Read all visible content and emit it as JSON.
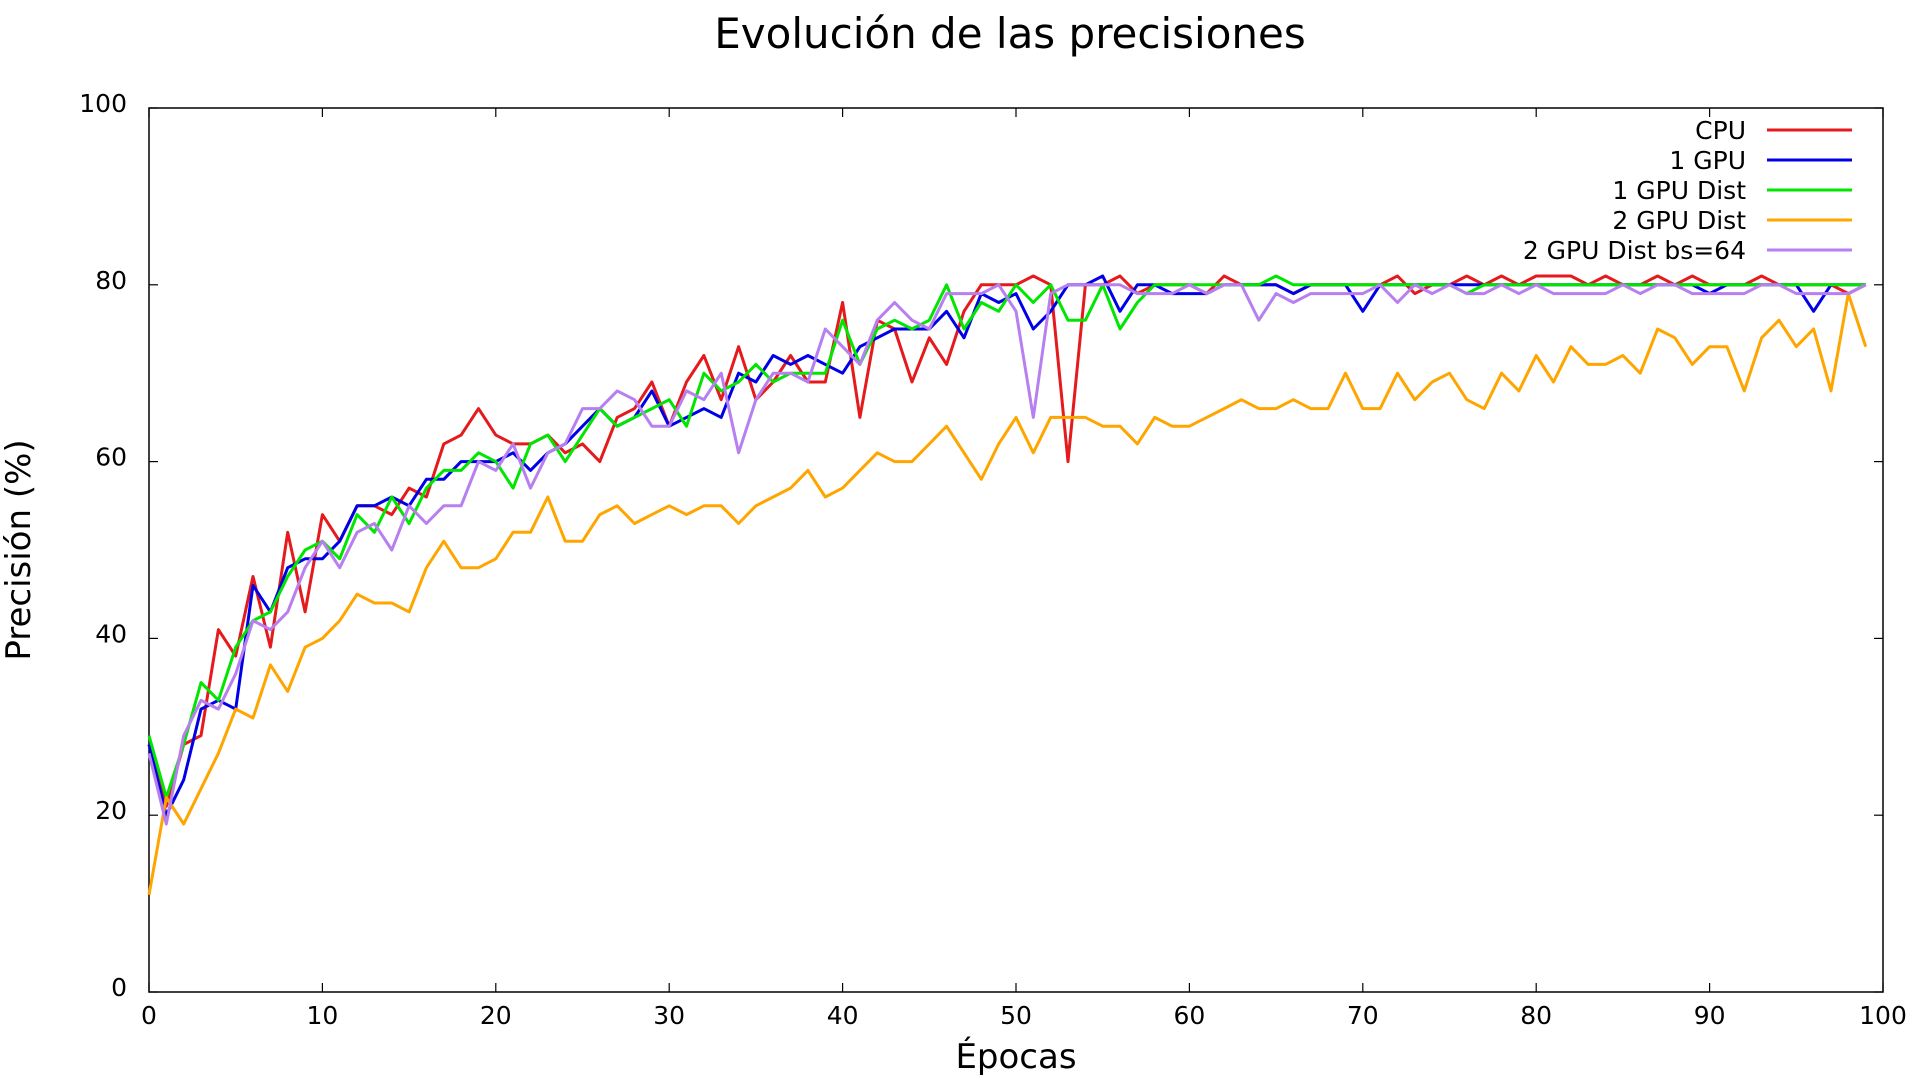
{
  "chart_data": {
    "type": "line",
    "title": "Evolución de las precisiones",
    "xlabel": "Épocas",
    "ylabel": "Precisión (%)",
    "xlim": [
      0,
      100
    ],
    "ylim": [
      0,
      100
    ],
    "xticks": [
      0,
      10,
      20,
      30,
      40,
      50,
      60,
      70,
      80,
      90,
      100
    ],
    "yticks": [
      0,
      20,
      40,
      60,
      80,
      100
    ],
    "grid": false,
    "legend_position": "top-right",
    "series": [
      {
        "name": "CPU",
        "color": "#e41a1c",
        "values": [
          28,
          21,
          28,
          29,
          41,
          38,
          47,
          39,
          52,
          43,
          54,
          51,
          55,
          55,
          54,
          57,
          56,
          62,
          63,
          66,
          63,
          62,
          62,
          63,
          61,
          62,
          60,
          65,
          66,
          69,
          64,
          69,
          72,
          67,
          73,
          67,
          69,
          72,
          69,
          69,
          78,
          65,
          76,
          75,
          69,
          74,
          71,
          77,
          80,
          80,
          80,
          81,
          80,
          60,
          80,
          80,
          81,
          79,
          80,
          80,
          80,
          79,
          81,
          80,
          80,
          80,
          79,
          80,
          80,
          80,
          80,
          80,
          81,
          79,
          80,
          80,
          81,
          80,
          81,
          80,
          81,
          81,
          81,
          80,
          81,
          80,
          80,
          81,
          80,
          81,
          80,
          80,
          80,
          81,
          80,
          80,
          80,
          80,
          79,
          80
        ]
      },
      {
        "name": "1 GPU",
        "color": "#0000e6",
        "values": [
          28,
          20,
          24,
          32,
          33,
          32,
          46,
          43,
          48,
          49,
          49,
          51,
          55,
          55,
          56,
          55,
          58,
          58,
          60,
          60,
          60,
          61,
          59,
          61,
          62,
          64,
          66,
          64,
          65,
          68,
          64,
          65,
          66,
          65,
          70,
          69,
          72,
          71,
          72,
          71,
          70,
          73,
          74,
          75,
          75,
          75,
          77,
          74,
          79,
          78,
          79,
          75,
          77,
          80,
          80,
          81,
          77,
          80,
          80,
          79,
          79,
          79,
          80,
          80,
          80,
          80,
          79,
          80,
          80,
          80,
          77,
          80,
          80,
          80,
          80,
          80,
          80,
          80,
          80,
          80,
          80,
          80,
          80,
          80,
          80,
          80,
          80,
          80,
          80,
          80,
          79,
          80,
          80,
          80,
          80,
          80,
          77,
          80,
          80,
          80
        ]
      },
      {
        "name": "1 GPU Dist",
        "color": "#00e600",
        "values": [
          29,
          22,
          28,
          35,
          33,
          39,
          42,
          43,
          47,
          50,
          51,
          49,
          54,
          52,
          56,
          53,
          57,
          59,
          59,
          61,
          60,
          57,
          62,
          63,
          60,
          63,
          66,
          64,
          65,
          66,
          67,
          64,
          70,
          68,
          69,
          71,
          69,
          70,
          70,
          70,
          76,
          71,
          75,
          76,
          75,
          76,
          80,
          75,
          78,
          77,
          80,
          78,
          80,
          76,
          76,
          80,
          75,
          78,
          80,
          80,
          80,
          80,
          80,
          80,
          80,
          81,
          80,
          80,
          80,
          80,
          80,
          80,
          80,
          80,
          80,
          80,
          79,
          80,
          80,
          80,
          80,
          80,
          80,
          80,
          80,
          80,
          80,
          80,
          80,
          80,
          80,
          80,
          80,
          80,
          80,
          80,
          80,
          80,
          80,
          80
        ]
      },
      {
        "name": "2 GPU Dist",
        "color": "#ffa500",
        "values": [
          11,
          22,
          19,
          23,
          27,
          32,
          31,
          37,
          34,
          39,
          40,
          42,
          45,
          44,
          44,
          43,
          48,
          51,
          48,
          48,
          49,
          52,
          52,
          56,
          51,
          51,
          54,
          55,
          53,
          54,
          55,
          54,
          55,
          55,
          53,
          55,
          56,
          57,
          59,
          56,
          57,
          59,
          61,
          60,
          60,
          62,
          64,
          61,
          58,
          62,
          65,
          61,
          65,
          65,
          65,
          64,
          64,
          62,
          65,
          64,
          64,
          65,
          66,
          67,
          66,
          66,
          67,
          66,
          66,
          70,
          66,
          66,
          70,
          67,
          69,
          70,
          67,
          66,
          70,
          68,
          72,
          69,
          73,
          71,
          71,
          72,
          70,
          75,
          74,
          71,
          73,
          73,
          68,
          74,
          76,
          73,
          75,
          68,
          79,
          73
        ]
      },
      {
        "name": "2 GPU Dist bs=64",
        "color": "#b77ff0",
        "values": [
          27,
          19,
          29,
          33,
          32,
          36,
          42,
          41,
          43,
          48,
          51,
          48,
          52,
          53,
          50,
          55,
          53,
          55,
          55,
          60,
          59,
          62,
          57,
          61,
          62,
          66,
          66,
          68,
          67,
          64,
          64,
          68,
          67,
          70,
          61,
          67,
          70,
          70,
          69,
          75,
          73,
          71,
          76,
          78,
          76,
          75,
          79,
          79,
          79,
          80,
          77,
          65,
          79,
          80,
          80,
          80,
          80,
          79,
          79,
          79,
          80,
          79,
          80,
          80,
          76,
          79,
          78,
          79,
          79,
          79,
          79,
          80,
          78,
          80,
          79,
          80,
          79,
          79,
          80,
          79,
          80,
          79,
          79,
          79,
          79,
          80,
          79,
          80,
          80,
          79,
          79,
          79,
          79,
          80,
          80,
          79,
          79,
          79,
          79,
          80
        ]
      }
    ]
  }
}
